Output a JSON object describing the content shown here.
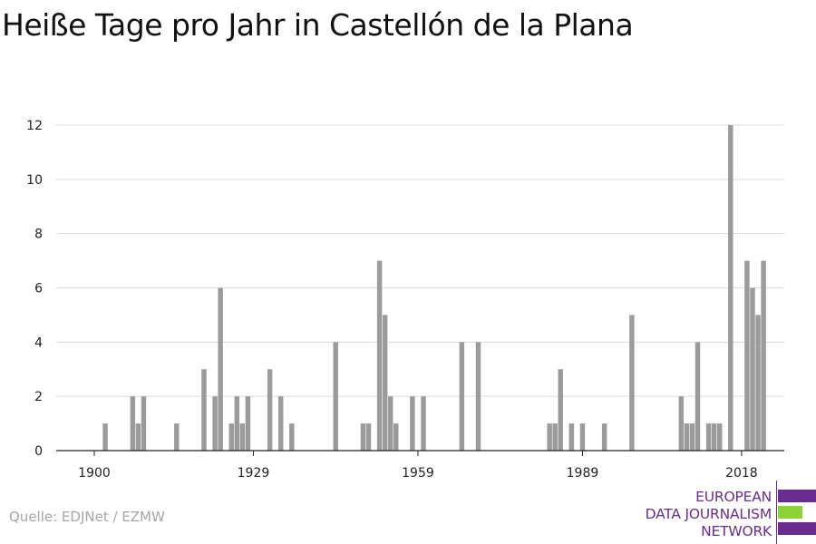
{
  "title": "Heiße Tage pro Jahr in Castellón de la Plana",
  "source": "Quelle: EDJNet / EZMW",
  "logo": {
    "lines": [
      "EUROPEAN",
      "DATA JOURNALISM",
      "NETWORK"
    ],
    "colors": {
      "purple": "#6a2c91",
      "green": "#8cd335"
    }
  },
  "chart_data": {
    "type": "bar",
    "title": "Heiße Tage pro Jahr in Castellón de la Plana",
    "xlabel": "",
    "ylabel": "",
    "xlim": [
      1900,
      2021
    ],
    "ylim": [
      0,
      12
    ],
    "xticks": [
      1900,
      1929,
      1959,
      1989,
      2018
    ],
    "yticks": [
      0,
      2,
      4,
      6,
      8,
      10,
      12
    ],
    "grid": true,
    "bar_color": "#9b9b9b",
    "x": [
      1902,
      1907,
      1908,
      1909,
      1915,
      1920,
      1922,
      1923,
      1925,
      1926,
      1927,
      1928,
      1932,
      1934,
      1936,
      1944,
      1949,
      1950,
      1952,
      1953,
      1954,
      1955,
      1958,
      1960,
      1967,
      1970,
      1983,
      1984,
      1985,
      1987,
      1989,
      1993,
      1998,
      2007,
      2008,
      2009,
      2010,
      2012,
      2013,
      2014,
      2016,
      2019,
      2020,
      2021,
      2022
    ],
    "values": [
      1,
      2,
      1,
      2,
      1,
      3,
      2,
      6,
      1,
      2,
      1,
      2,
      3,
      2,
      1,
      4,
      1,
      1,
      7,
      5,
      2,
      1,
      2,
      2,
      4,
      4,
      1,
      1,
      3,
      1,
      1,
      1,
      5,
      2,
      1,
      1,
      4,
      1,
      1,
      1,
      12,
      7,
      6,
      5,
      7
    ]
  }
}
